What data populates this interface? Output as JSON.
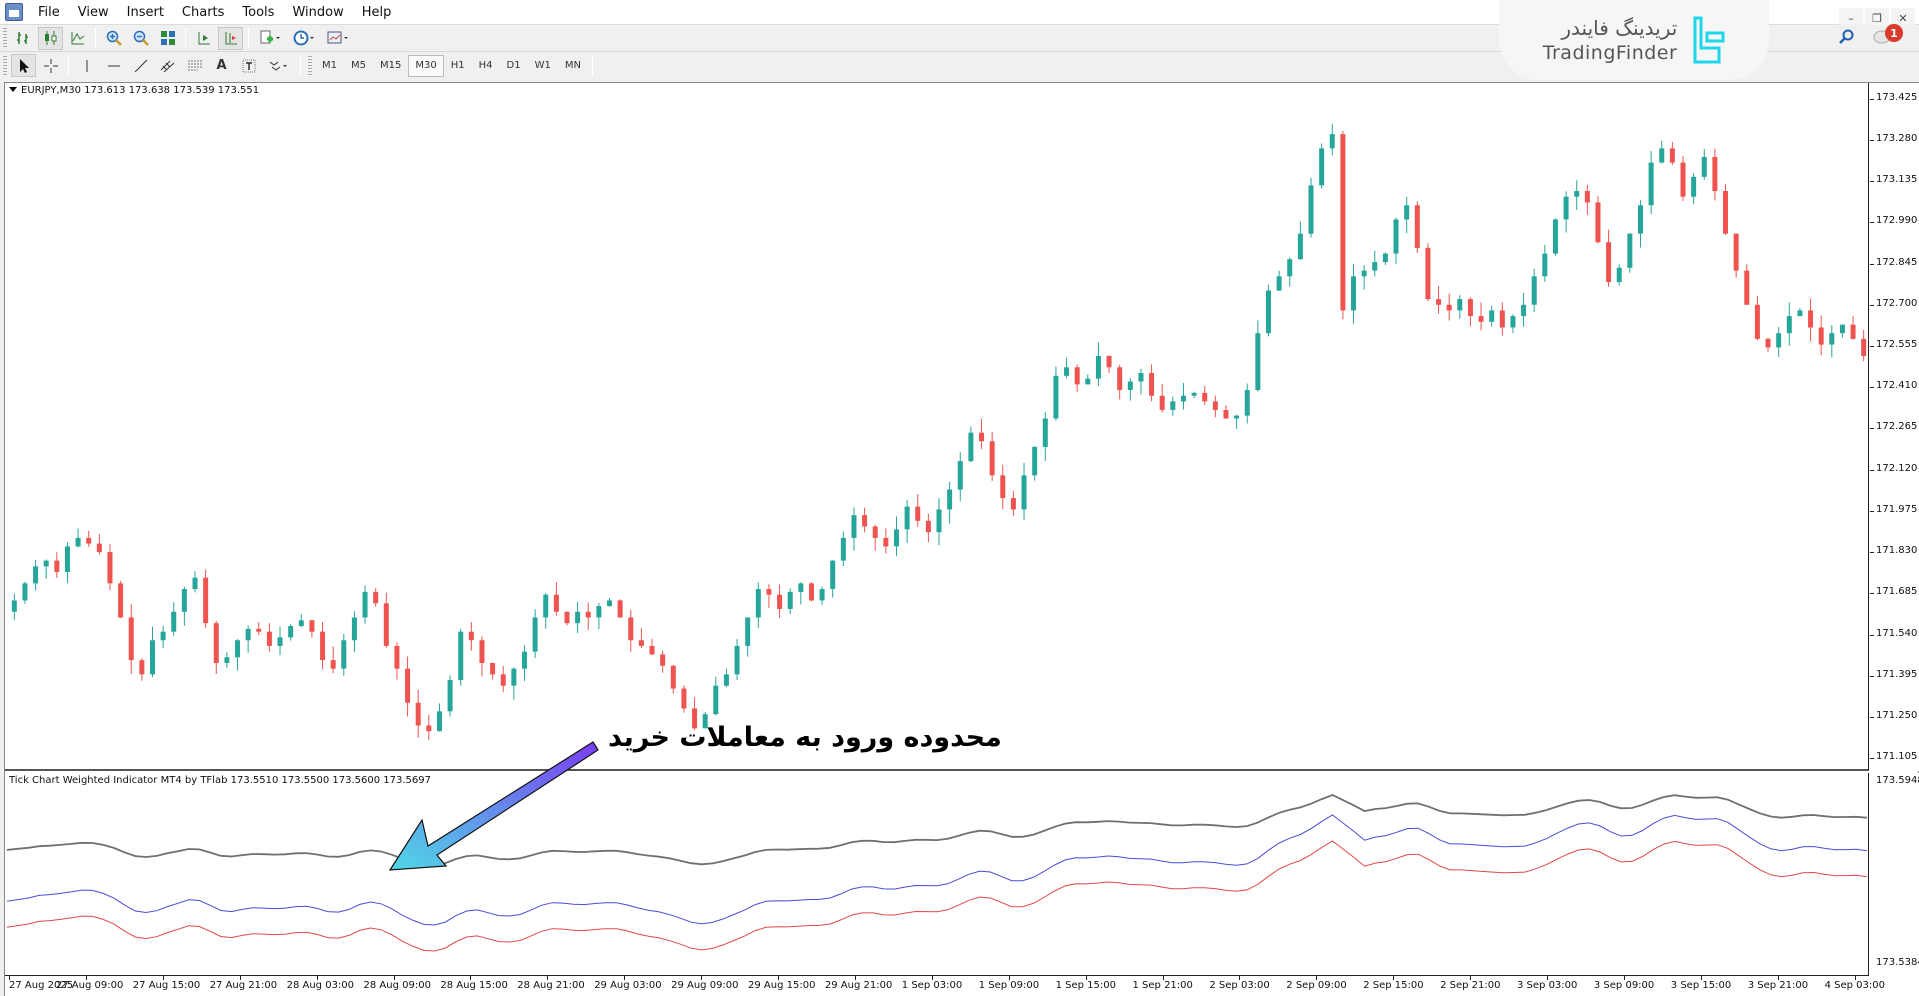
{
  "menu": {
    "items": [
      "File",
      "View",
      "Insert",
      "Charts",
      "Tools",
      "Window",
      "Help"
    ]
  },
  "window_controls": [
    "minimize",
    "restore",
    "close"
  ],
  "logo": {
    "fa": "تریدینگ فایندر",
    "en": "TradingFinder"
  },
  "notifications": {
    "count": "1"
  },
  "toolbar1": {
    "icons": [
      "bar-chart-icon",
      "candlestick-icon",
      "line-chart-icon",
      "zoom-in-icon",
      "zoom-out-icon",
      "tile-windows-icon",
      "autoscroll-icon",
      "chart-shift-icon",
      "new-chart-icon",
      "periods-icon",
      "templates-icon"
    ]
  },
  "toolbar2": {
    "tools": [
      "cursor-icon",
      "crosshair-icon",
      "vertical-line-icon",
      "horizontal-line-icon",
      "trendline-icon",
      "equidistant-channel-icon",
      "fibonacci-icon",
      "text-icon",
      "text-label-icon",
      "shapes-icon"
    ],
    "timeframes": [
      "M1",
      "M5",
      "M15",
      "M30",
      "H1",
      "H4",
      "D1",
      "W1",
      "MN"
    ],
    "active_timeframe": "M30"
  },
  "chart": {
    "symbol_header": "EURJPY,M30  173.613 173.638 173.539 173.551",
    "price_axis": [
      "173.425",
      "173.280",
      "173.135",
      "172.990",
      "172.845",
      "172.700",
      "172.555",
      "172.410",
      "172.265",
      "172.120",
      "171.975",
      "171.830",
      "171.685",
      "171.540",
      "171.395",
      "171.250",
      "171.105"
    ],
    "price_max": 173.48,
    "price_min": 171.06,
    "bull_color": "#26a69a",
    "bear_color": "#ef5350"
  },
  "indicator": {
    "title": "Tick Chart Weighted Indicator MT4 by TFlab 173.5510 173.5500 173.5600 173.5697",
    "axis_top": "173.5948",
    "axis_bottom": "173.5384",
    "colors": {
      "gray": "#707070",
      "blue": "#4b4bd6",
      "red": "#e04848"
    }
  },
  "time_axis": [
    "27 Aug 2025",
    "27 Aug 09:00",
    "27 Aug 15:00",
    "27 Aug 21:00",
    "28 Aug 03:00",
    "28 Aug 09:00",
    "28 Aug 15:00",
    "28 Aug 21:00",
    "29 Aug 03:00",
    "29 Aug 09:00",
    "29 Aug 15:00",
    "29 Aug 21:00",
    "1 Sep 03:00",
    "1 Sep 09:00",
    "1 Sep 15:00",
    "1 Sep 21:00",
    "2 Sep 03:00",
    "2 Sep 09:00",
    "2 Sep 15:00",
    "2 Sep 21:00",
    "3 Sep 03:00",
    "3 Sep 09:00",
    "3 Sep 15:00",
    "3 Sep 21:00",
    "4 Sep 03:00"
  ],
  "annotation": {
    "text": "محدوده ورود به معاملات خرید"
  },
  "closes": [
    171.66,
    171.72,
    171.78,
    171.8,
    171.76,
    171.85,
    171.88,
    171.86,
    171.83,
    171.72,
    171.6,
    171.45,
    171.4,
    171.52,
    171.55,
    171.62,
    171.7,
    171.74,
    171.58,
    171.44,
    171.46,
    171.52,
    171.56,
    171.55,
    171.5,
    171.53,
    171.57,
    171.59,
    171.55,
    171.45,
    171.42,
    171.52,
    171.6,
    171.69,
    171.65,
    171.5,
    171.42,
    171.3,
    171.22,
    171.2,
    171.27,
    171.38,
    171.55,
    171.52,
    171.44,
    171.4,
    171.36,
    171.42,
    171.48,
    171.6,
    171.68,
    171.62,
    171.58,
    171.62,
    171.6,
    171.64,
    171.66,
    171.6,
    171.52,
    171.5,
    171.47,
    171.43,
    171.35,
    171.28,
    171.21,
    171.26,
    171.36,
    171.4,
    171.5,
    171.6,
    171.7,
    171.68,
    171.63,
    171.69,
    171.72,
    171.66,
    171.7,
    171.8,
    171.88,
    171.96,
    171.92,
    171.88,
    171.85,
    171.91,
    171.99,
    171.94,
    171.9,
    171.98,
    172.05,
    172.15,
    172.25,
    172.22,
    172.1,
    172.02,
    171.98,
    172.1,
    172.2,
    172.3,
    172.45,
    172.48,
    172.42,
    172.44,
    172.52,
    172.48,
    172.4,
    172.43,
    172.46,
    172.38,
    172.33,
    172.36,
    172.38,
    172.39,
    172.36,
    172.33,
    172.3,
    172.31,
    172.4,
    172.6,
    172.75,
    172.8,
    172.86,
    172.95,
    173.12,
    173.25,
    173.3,
    172.68,
    172.8,
    172.82,
    172.85,
    172.88,
    173.0,
    173.05,
    172.9,
    172.72,
    172.7,
    172.68,
    172.72,
    172.66,
    172.64,
    172.68,
    172.62,
    172.66,
    172.7,
    172.8,
    172.88,
    173.0,
    173.08,
    173.1,
    173.06,
    172.92,
    172.78,
    172.83,
    172.95,
    173.05,
    173.2,
    173.25,
    173.2,
    173.08,
    173.15,
    173.22,
    173.1,
    172.95,
    172.82,
    172.7,
    172.58,
    172.55,
    172.6,
    172.66,
    172.68,
    172.62,
    172.56,
    172.6,
    172.63,
    172.58,
    172.52
  ]
}
